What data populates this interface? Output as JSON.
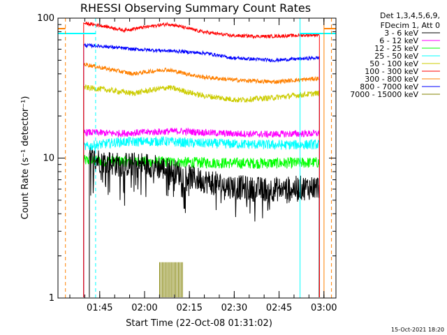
{
  "chart_data": {
    "type": "line",
    "title": "RHESSI Observing Summary Count Rates",
    "xlabel": "Start Time (22-Oct-08 01:31:02)",
    "ylabel": "Count Rate (s⁻¹ detector⁻¹)",
    "yscale": "log",
    "ylim": [
      1,
      100
    ],
    "xlim_minutes_after_0131": [
      0,
      93
    ],
    "y_ticks": [
      {
        "label": "1",
        "value": 1
      },
      {
        "label": "10",
        "value": 10
      },
      {
        "label": "100",
        "value": 100
      }
    ],
    "x_ticks": [
      {
        "label": "01:45",
        "t": 13.97
      },
      {
        "label": "02:00",
        "t": 28.97
      },
      {
        "label": "02:15",
        "t": 43.97
      },
      {
        "label": "02:30",
        "t": 58.97
      },
      {
        "label": "02:45",
        "t": 73.97
      },
      {
        "label": "03:00",
        "t": 88.97
      }
    ],
    "legend_header": [
      "Det 1,3,4,5,6,9,",
      "FDecim 1, Att 0"
    ],
    "series": [
      {
        "name": "3 - 6 keV",
        "color": "#000000",
        "start": 10.5,
        "end": 87.4,
        "knots": [
          [
            10.5,
            10
          ],
          [
            20,
            9
          ],
          [
            30,
            9
          ],
          [
            35,
            8.5
          ],
          [
            45,
            7.2
          ],
          [
            55,
            6.4
          ],
          [
            65,
            6.0
          ],
          [
            75,
            6.0
          ],
          [
            86.5,
            6.2
          ]
        ],
        "noise": 0.09,
        "drops": true
      },
      {
        "name": "6 - 12 keV",
        "color": "#ff00ff",
        "start": 8.6,
        "end": 87.5,
        "knots": [
          [
            8.6,
            15.3
          ],
          [
            20,
            15
          ],
          [
            30,
            15.3
          ],
          [
            40,
            15.6
          ],
          [
            55,
            15
          ],
          [
            70,
            14.8
          ],
          [
            86.5,
            15
          ]
        ],
        "noise": 0.025
      },
      {
        "name": "12 - 25 keV",
        "color": "#00ff00",
        "start": 8.6,
        "end": 87.5,
        "knots": [
          [
            8.6,
            9.6
          ],
          [
            20,
            9.5
          ],
          [
            30,
            9.4
          ],
          [
            45,
            9.3
          ],
          [
            60,
            9.2
          ],
          [
            75,
            9.2
          ],
          [
            86.5,
            9.3
          ]
        ],
        "noise": 0.04
      },
      {
        "name": "25 - 50 keV",
        "color": "#00ffff",
        "start": 8.6,
        "end": 87.5,
        "knots": [
          [
            8.6,
            12
          ],
          [
            20,
            13
          ],
          [
            35,
            13.2
          ],
          [
            45,
            12.8
          ],
          [
            60,
            12.6
          ],
          [
            75,
            12.4
          ],
          [
            86.5,
            12.5
          ]
        ],
        "noise": 0.035
      },
      {
        "name": "50 - 100 keV",
        "color": "#cccc00",
        "start": 8.6,
        "end": 87.5,
        "knots": [
          [
            8.6,
            32
          ],
          [
            15,
            31
          ],
          [
            25,
            29
          ],
          [
            37,
            32
          ],
          [
            48,
            28
          ],
          [
            60,
            26
          ],
          [
            72,
            27
          ],
          [
            86.5,
            29
          ]
        ],
        "noise": 0.02
      },
      {
        "name": "100 - 300 keV",
        "color": "#ff0000",
        "start": 8.6,
        "end": 87.5,
        "knots": [
          [
            8.6,
            92
          ],
          [
            15,
            88
          ],
          [
            22,
            82
          ],
          [
            37,
            91
          ],
          [
            48,
            80
          ],
          [
            58,
            75
          ],
          [
            70,
            74
          ],
          [
            86.5,
            76
          ]
        ],
        "noise": 0.012
      },
      {
        "name": "300 - 800 keV",
        "color": "#ff8000",
        "start": 8.6,
        "end": 87.5,
        "knots": [
          [
            8.6,
            47
          ],
          [
            15,
            44
          ],
          [
            25,
            40
          ],
          [
            36,
            43
          ],
          [
            48,
            38
          ],
          [
            60,
            36
          ],
          [
            72,
            35
          ],
          [
            86.5,
            37
          ]
        ],
        "noise": 0.015
      },
      {
        "name": "800 - 7000 keV",
        "color": "#0000ff",
        "start": 8.6,
        "end": 87.5,
        "knots": [
          [
            8.6,
            64
          ],
          [
            15,
            63
          ],
          [
            25,
            60
          ],
          [
            40,
            58
          ],
          [
            50,
            56
          ],
          [
            58,
            52
          ],
          [
            72,
            50
          ],
          [
            86.5,
            52
          ]
        ],
        "noise": 0.012
      },
      {
        "name": "7000 - 15000 keV",
        "color": "#808000",
        "start": 34,
        "end": 42,
        "knots": [
          [
            34,
            1.8
          ],
          [
            38,
            1.8
          ],
          [
            42,
            1.8
          ]
        ],
        "noise": 0.0,
        "sparse": true
      }
    ],
    "flag_lines": [
      {
        "type": "orange-dashed",
        "t": 2.5
      },
      {
        "type": "cyan-dashed",
        "t": 12.6
      },
      {
        "type": "cyan-solid",
        "t": 81.0
      },
      {
        "type": "orange-solid",
        "t": 89.0
      },
      {
        "type": "orange-dashed",
        "t": 91.5
      }
    ],
    "timestamp": "15-Oct-2021 18:20"
  }
}
